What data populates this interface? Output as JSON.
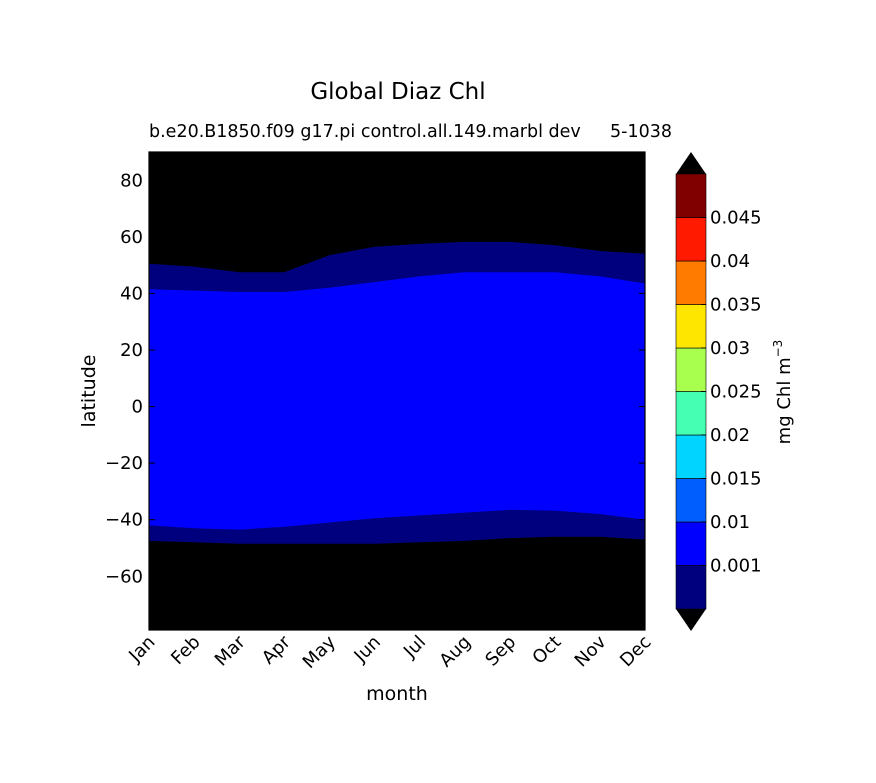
{
  "chart_data": {
    "type": "heatmap",
    "title": "Global Diaz Chl",
    "subtitle_left": "b.e20.B1850.f09 g17.pi control.all.149.marbl dev",
    "subtitle_right": "5-1038",
    "xlabel": "month",
    "ylabel": "latitude",
    "x_categories": [
      "Jan",
      "Feb",
      "Mar",
      "Apr",
      "May",
      "Jun",
      "Jul",
      "Aug",
      "Sep",
      "Oct",
      "Nov",
      "Dec"
    ],
    "ylim": [
      -79,
      90
    ],
    "yticks": [
      80,
      60,
      40,
      20,
      0,
      -20,
      -40,
      -60
    ],
    "ytick_labels": [
      "80",
      "60",
      "40",
      "20",
      "0",
      "−20",
      "−40",
      "−60"
    ],
    "colorbar": {
      "label": "mg Chl m",
      "label_superscript": "−3",
      "levels": [
        0.001,
        0.01,
        0.015,
        0.02,
        0.025,
        0.03,
        0.035,
        0.04,
        0.045
      ],
      "tick_labels": [
        "0.001",
        "0.01",
        "0.015",
        "0.02",
        "0.025",
        "0.03",
        "0.035",
        "0.04",
        "0.045"
      ],
      "colors": [
        "#00007f",
        "#0000ff",
        "#005eff",
        "#00d4ff",
        "#45ffb2",
        "#a9ff4d",
        "#ffe600",
        "#ff7b00",
        "#ff1a00",
        "#800000"
      ],
      "under_color": "#000000",
      "over_color": "#000000",
      "extend": "both"
    },
    "background_color": "#000000",
    "contours": [
      {
        "name": "0.001 contour (north)",
        "x": [
          "Jan",
          "Feb",
          "Mar",
          "Apr",
          "May",
          "Jun",
          "Jul",
          "Aug",
          "Sep",
          "Oct",
          "Nov",
          "Dec"
        ],
        "lat": [
          50.5,
          49.5,
          47.5,
          47.5,
          53.5,
          56.5,
          57.5,
          58.2,
          58.2,
          57,
          55,
          54
        ]
      },
      {
        "name": "0.01 contour (north)",
        "x": [
          "Jan",
          "Feb",
          "Mar",
          "Apr",
          "May",
          "Jun",
          "Jul",
          "Aug",
          "Sep",
          "Oct",
          "Nov",
          "Dec"
        ],
        "lat": [
          41.5,
          41,
          40.5,
          40.5,
          42,
          44,
          46,
          47.5,
          47.5,
          47.5,
          46,
          43.5
        ]
      },
      {
        "name": "0.01 contour (south)",
        "x": [
          "Jan",
          "Feb",
          "Mar",
          "Apr",
          "May",
          "Jun",
          "Jul",
          "Aug",
          "Sep",
          "Oct",
          "Nov",
          "Dec"
        ],
        "lat": [
          -42,
          -43,
          -43.5,
          -42.5,
          -41,
          -39.5,
          -38.5,
          -37.5,
          -36.5,
          -36.8,
          -38,
          -40
        ]
      },
      {
        "name": "0.001 contour (south)",
        "x": [
          "Jan",
          "Feb",
          "Mar",
          "Apr",
          "May",
          "Jun",
          "Jul",
          "Aug",
          "Sep",
          "Oct",
          "Nov",
          "Dec"
        ],
        "lat": [
          -47.5,
          -48,
          -48.5,
          -48.5,
          -48.5,
          -48.5,
          -48,
          -47.5,
          -46.5,
          -46,
          -46,
          -47
        ]
      }
    ]
  }
}
